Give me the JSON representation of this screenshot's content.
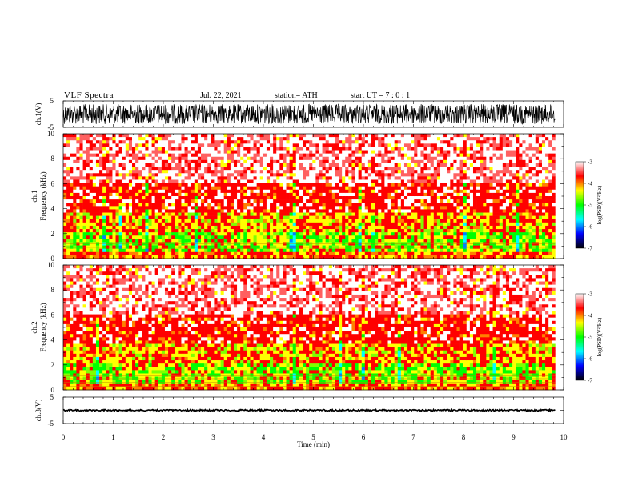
{
  "header": {
    "title": "VLF  Spectra",
    "date": "Jul.  22, 2021",
    "station": "station= ATH",
    "start_ut": "start  UT  =    7  : 0   : 1"
  },
  "chart_data": [
    {
      "type": "line",
      "panel": "ch1-waveform",
      "ylabel": "ch.1(V)",
      "yticks": [
        "5",
        "-5"
      ],
      "ylim": [
        -5,
        5
      ],
      "xlim": [
        0,
        10
      ],
      "series": [
        {
          "values_summary": {
            "min": -4.5,
            "max": 4.5,
            "center": 0
          }
        }
      ]
    },
    {
      "type": "heatmap",
      "panel": "ch1-spectrogram",
      "ylabel_top": "ch.1",
      "ylabel": "Frequency  (kHz)",
      "yticks": [
        "0",
        "2",
        "4",
        "6",
        "8",
        "10"
      ],
      "ylim": [
        0,
        10
      ],
      "xlim": [
        0,
        9.83
      ],
      "colorbar": {
        "label": "log(PSD)(V²/Hz)",
        "ticks": [
          "-3",
          "-4",
          "-5",
          "-6",
          "-7"
        ],
        "range": [
          -7,
          -3
        ],
        "colors": [
          "#000000",
          "#0000ff",
          "#00ffff",
          "#00ff00",
          "#ffff00",
          "#ff0000",
          "#ffffff"
        ]
      },
      "bands": [
        {
          "freq_khz": [
            0,
            0.5
          ],
          "log_psd": -4.1
        },
        {
          "freq_khz": [
            0.5,
            2
          ],
          "log_psd": -4.9
        },
        {
          "freq_khz": [
            2,
            3.6
          ],
          "log_psd": -4.5
        },
        {
          "freq_khz": [
            3.6,
            6
          ],
          "log_psd": -3.9
        },
        {
          "freq_khz": [
            6,
            10
          ],
          "log_psd": -3.4
        }
      ]
    },
    {
      "type": "heatmap",
      "panel": "ch2-spectrogram",
      "ylabel_top": "ch.2",
      "ylabel": "Frequency  (kHz)",
      "yticks": [
        "0",
        "2",
        "4",
        "6",
        "8",
        "10"
      ],
      "ylim": [
        0,
        10
      ],
      "xlim": [
        0,
        9.83
      ],
      "colorbar": {
        "label": "log(PSD)(V²/Hz)",
        "ticks": [
          "-3",
          "-4",
          "-5",
          "-6",
          "-7"
        ],
        "range": [
          -7,
          -3
        ],
        "colors": [
          "#000000",
          "#0000ff",
          "#00ffff",
          "#00ff00",
          "#ffff00",
          "#ff0000",
          "#ffffff"
        ]
      },
      "bands": [
        {
          "freq_khz": [
            0,
            0.5
          ],
          "log_psd": -4.1
        },
        {
          "freq_khz": [
            0.5,
            2
          ],
          "log_psd": -4.9
        },
        {
          "freq_khz": [
            2,
            3.6
          ],
          "log_psd": -4.5
        },
        {
          "freq_khz": [
            3.6,
            6
          ],
          "log_psd": -3.9
        },
        {
          "freq_khz": [
            6,
            10
          ],
          "log_psd": -3.4
        }
      ]
    },
    {
      "type": "line",
      "panel": "ch3-waveform",
      "ylabel": "ch.3(V)",
      "yticks": [
        "5",
        "-5"
      ],
      "ylim": [
        -5,
        5
      ],
      "xlim": [
        0,
        10
      ],
      "series": [
        {
          "values_summary": {
            "min": -0.4,
            "max": 0.4,
            "center": 0
          }
        }
      ]
    }
  ],
  "x_axis": {
    "label": "Time  (min)",
    "ticks": [
      "0",
      "1",
      "2",
      "3",
      "4",
      "5",
      "6",
      "7",
      "8",
      "9",
      "10"
    ],
    "xlim": [
      0,
      10
    ]
  }
}
